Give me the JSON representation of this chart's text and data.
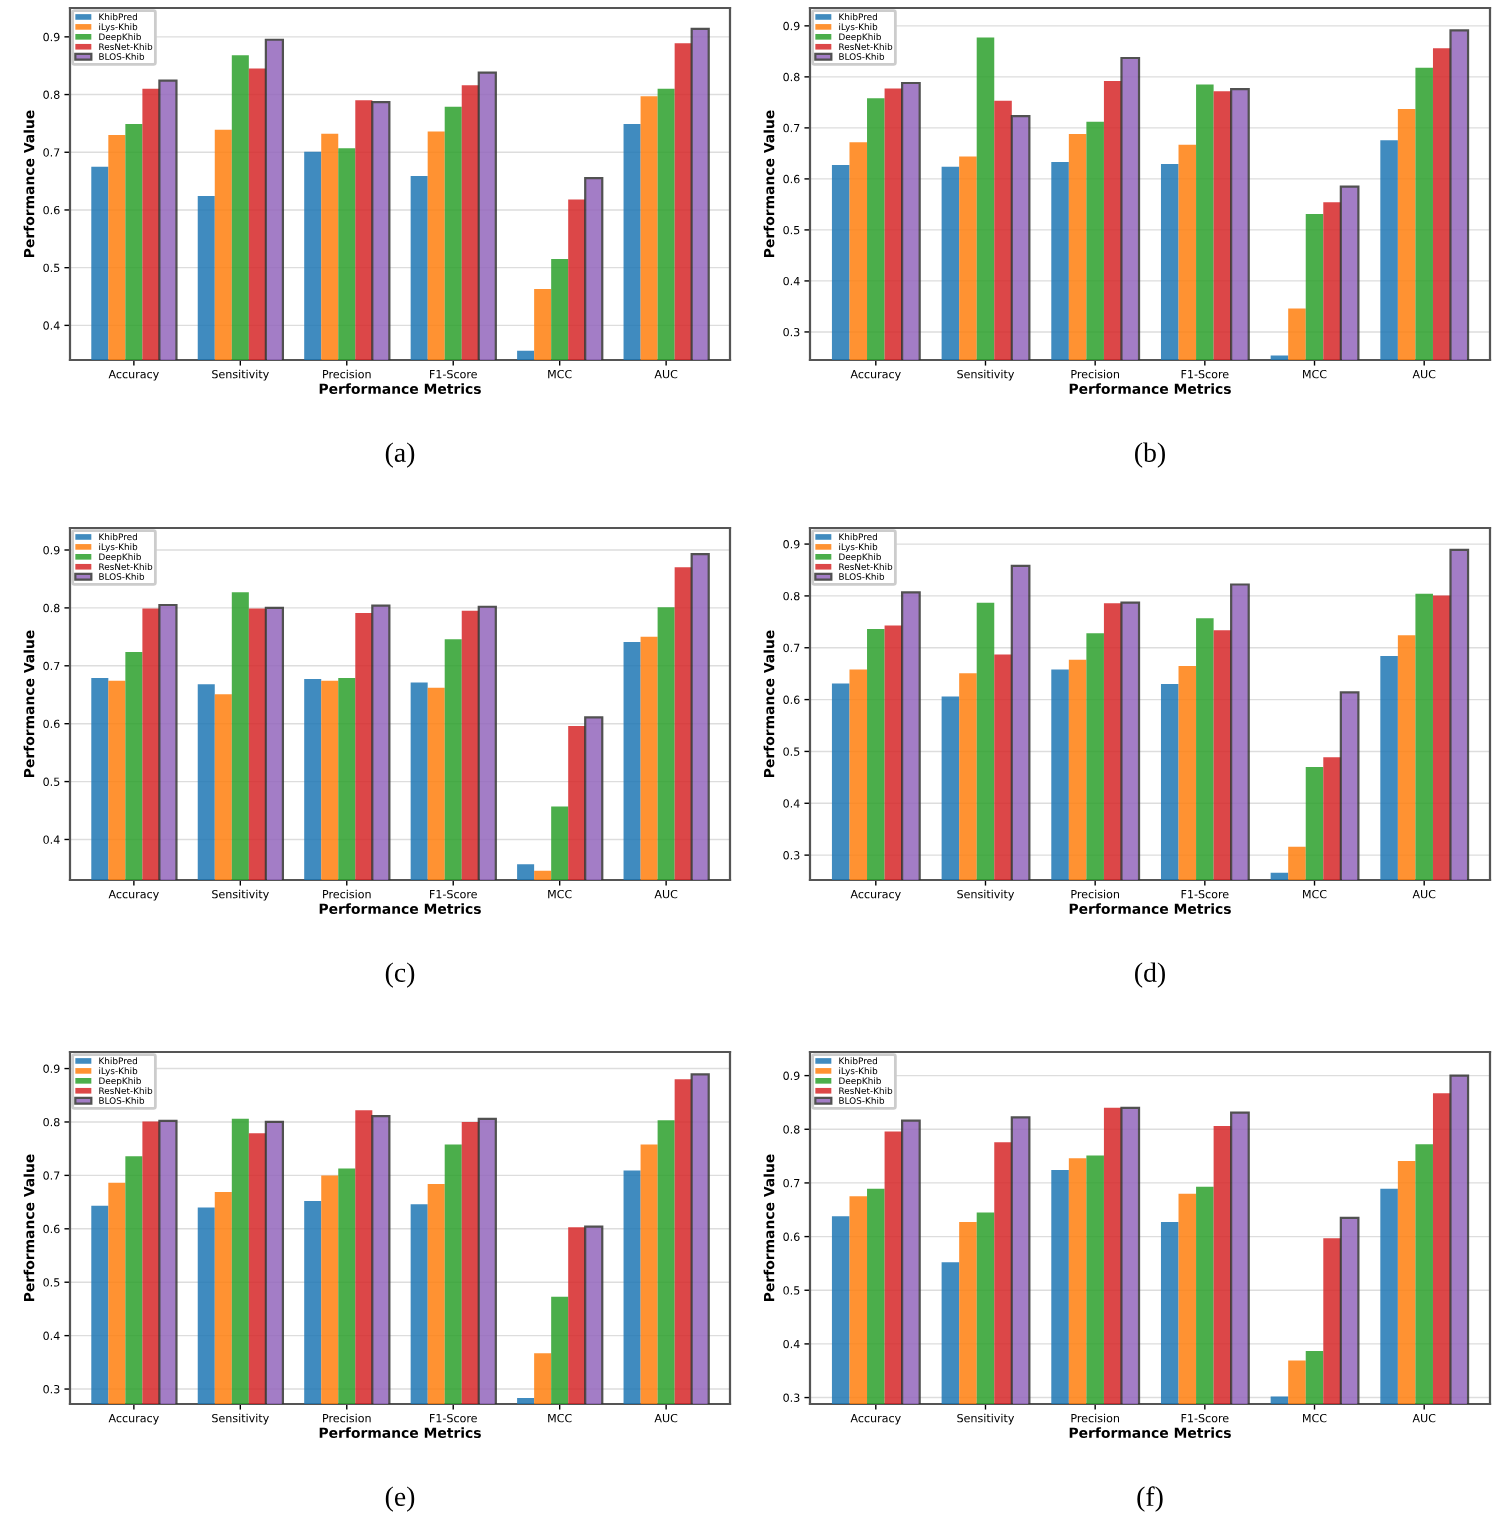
{
  "chart_data": [
    {
      "type": "bar",
      "xlabel": "Performance Metrics",
      "ylabel": "Performance Value",
      "annotations": [
        "(a)"
      ],
      "categories": [
        "Accuracy",
        "Sensitivity",
        "Precision",
        "F1-Score",
        "MCC",
        "AUC"
      ],
      "ylim": [
        0.34,
        0.95
      ],
      "yticks": [
        0.4,
        0.5,
        0.6,
        0.7,
        0.8,
        0.9
      ],
      "grid": "y",
      "legend": "top left",
      "series": [
        {
          "name": "KhibPred",
          "color": "#1f77b4",
          "values": [
            0.675,
            0.624,
            0.701,
            0.659,
            0.356,
            0.749
          ]
        },
        {
          "name": "iLys-Khib",
          "color": "#ff7f0e",
          "values": [
            0.73,
            0.739,
            0.732,
            0.736,
            0.463,
            0.797
          ]
        },
        {
          "name": "DeepKhib",
          "color": "#2ca02c",
          "values": [
            0.749,
            0.868,
            0.707,
            0.779,
            0.515,
            0.81
          ]
        },
        {
          "name": "ResNet-Khib",
          "color": "#d62728",
          "values": [
            0.81,
            0.845,
            0.79,
            0.816,
            0.618,
            0.889
          ]
        },
        {
          "name": "BLOS-Khib",
          "color": "#9467bd",
          "values": [
            0.824,
            0.895,
            0.787,
            0.838,
            0.655,
            0.914
          ]
        }
      ]
    },
    {
      "type": "bar",
      "xlabel": "Performance Metrics",
      "ylabel": "Performance Value",
      "annotations": [
        "(b)"
      ],
      "categories": [
        "Accuracy",
        "Sensitivity",
        "Precision",
        "F1-Score",
        "MCC",
        "AUC"
      ],
      "ylim": [
        0.245,
        0.935
      ],
      "yticks": [
        0.3,
        0.4,
        0.5,
        0.6,
        0.7,
        0.8,
        0.9
      ],
      "grid": "y",
      "legend": "top left",
      "series": [
        {
          "name": "KhibPred",
          "color": "#1f77b4",
          "values": [
            0.627,
            0.624,
            0.633,
            0.629,
            0.254,
            0.676
          ]
        },
        {
          "name": "iLys-Khib",
          "color": "#ff7f0e",
          "values": [
            0.672,
            0.644,
            0.688,
            0.667,
            0.346,
            0.737
          ]
        },
        {
          "name": "DeepKhib",
          "color": "#2ca02c",
          "values": [
            0.758,
            0.877,
            0.712,
            0.785,
            0.531,
            0.818
          ]
        },
        {
          "name": "ResNet-Khib",
          "color": "#d62728",
          "values": [
            0.777,
            0.753,
            0.792,
            0.772,
            0.554,
            0.856
          ]
        },
        {
          "name": "BLOS-Khib",
          "color": "#9467bd",
          "values": [
            0.788,
            0.723,
            0.837,
            0.776,
            0.585,
            0.891
          ]
        }
      ]
    },
    {
      "type": "bar",
      "xlabel": "Performance Metrics",
      "ylabel": "Performance Value",
      "annotations": [
        "(c)"
      ],
      "categories": [
        "Accuracy",
        "Sensitivity",
        "Precision",
        "F1-Score",
        "MCC",
        "AUC"
      ],
      "ylim": [
        0.33,
        0.938
      ],
      "yticks": [
        0.4,
        0.5,
        0.6,
        0.7,
        0.8,
        0.9
      ],
      "grid": "y",
      "legend": "top left",
      "series": [
        {
          "name": "KhibPred",
          "color": "#1f77b4",
          "values": [
            0.679,
            0.668,
            0.677,
            0.671,
            0.357,
            0.741
          ]
        },
        {
          "name": "iLys-Khib",
          "color": "#ff7f0e",
          "values": [
            0.674,
            0.651,
            0.674,
            0.662,
            0.346,
            0.75
          ]
        },
        {
          "name": "DeepKhib",
          "color": "#2ca02c",
          "values": [
            0.724,
            0.827,
            0.679,
            0.746,
            0.457,
            0.801
          ]
        },
        {
          "name": "ResNet-Khib",
          "color": "#d62728",
          "values": [
            0.799,
            0.799,
            0.791,
            0.795,
            0.596,
            0.87
          ]
        },
        {
          "name": "BLOS-Khib",
          "color": "#9467bd",
          "values": [
            0.805,
            0.8,
            0.804,
            0.802,
            0.611,
            0.893
          ]
        }
      ]
    },
    {
      "type": "bar",
      "xlabel": "Performance Metrics",
      "ylabel": "Performance Value",
      "annotations": [
        "(d)"
      ],
      "categories": [
        "Accuracy",
        "Sensitivity",
        "Precision",
        "F1-Score",
        "MCC",
        "AUC"
      ],
      "ylim": [
        0.252,
        0.931
      ],
      "yticks": [
        0.3,
        0.4,
        0.5,
        0.6,
        0.7,
        0.8,
        0.9
      ],
      "grid": "y",
      "legend": "top left",
      "series": [
        {
          "name": "KhibPred",
          "color": "#1f77b4",
          "values": [
            0.631,
            0.606,
            0.658,
            0.63,
            0.266,
            0.684
          ]
        },
        {
          "name": "iLys-Khib",
          "color": "#ff7f0e",
          "values": [
            0.658,
            0.651,
            0.677,
            0.665,
            0.316,
            0.724
          ]
        },
        {
          "name": "DeepKhib",
          "color": "#2ca02c",
          "values": [
            0.736,
            0.787,
            0.728,
            0.757,
            0.47,
            0.804
          ]
        },
        {
          "name": "ResNet-Khib",
          "color": "#d62728",
          "values": [
            0.743,
            0.687,
            0.786,
            0.734,
            0.489,
            0.801
          ]
        },
        {
          "name": "BLOS-Khib",
          "color": "#9467bd",
          "values": [
            0.807,
            0.858,
            0.787,
            0.822,
            0.614,
            0.889
          ]
        }
      ]
    },
    {
      "type": "bar",
      "xlabel": "Performance Metrics",
      "ylabel": "Performance Value",
      "annotations": [
        "(e)"
      ],
      "categories": [
        "Accuracy",
        "Sensitivity",
        "Precision",
        "F1-Score",
        "MCC",
        "AUC"
      ],
      "ylim": [
        0.272,
        0.931
      ],
      "yticks": [
        0.3,
        0.4,
        0.5,
        0.6,
        0.7,
        0.8,
        0.9
      ],
      "grid": "y",
      "legend": "top left",
      "series": [
        {
          "name": "KhibPred",
          "color": "#1f77b4",
          "values": [
            0.643,
            0.64,
            0.652,
            0.646,
            0.283,
            0.709
          ]
        },
        {
          "name": "iLys-Khib",
          "color": "#ff7f0e",
          "values": [
            0.686,
            0.669,
            0.7,
            0.684,
            0.367,
            0.758
          ]
        },
        {
          "name": "DeepKhib",
          "color": "#2ca02c",
          "values": [
            0.736,
            0.806,
            0.713,
            0.758,
            0.473,
            0.803
          ]
        },
        {
          "name": "ResNet-Khib",
          "color": "#d62728",
          "values": [
            0.801,
            0.779,
            0.822,
            0.8,
            0.603,
            0.88
          ]
        },
        {
          "name": "BLOS-Khib",
          "color": "#9467bd",
          "values": [
            0.802,
            0.8,
            0.811,
            0.806,
            0.604,
            0.889
          ]
        }
      ]
    },
    {
      "type": "bar",
      "xlabel": "Performance Metrics",
      "ylabel": "Performance Value",
      "annotations": [
        "(f)"
      ],
      "categories": [
        "Accuracy",
        "Sensitivity",
        "Precision",
        "F1-Score",
        "MCC",
        "AUC"
      ],
      "ylim": [
        0.288,
        0.944
      ],
      "yticks": [
        0.3,
        0.4,
        0.5,
        0.6,
        0.7,
        0.8,
        0.9
      ],
      "grid": "y",
      "legend": "top left",
      "series": [
        {
          "name": "KhibPred",
          "color": "#1f77b4",
          "values": [
            0.638,
            0.552,
            0.724,
            0.627,
            0.302,
            0.689
          ]
        },
        {
          "name": "iLys-Khib",
          "color": "#ff7f0e",
          "values": [
            0.675,
            0.627,
            0.746,
            0.68,
            0.369,
            0.741
          ]
        },
        {
          "name": "DeepKhib",
          "color": "#2ca02c",
          "values": [
            0.689,
            0.645,
            0.751,
            0.693,
            0.387,
            0.772
          ]
        },
        {
          "name": "ResNet-Khib",
          "color": "#d62728",
          "values": [
            0.796,
            0.776,
            0.84,
            0.806,
            0.597,
            0.867
          ]
        },
        {
          "name": "BLOS-Khib",
          "color": "#9467bd",
          "values": [
            0.816,
            0.822,
            0.84,
            0.831,
            0.635,
            0.9
          ]
        }
      ]
    }
  ]
}
